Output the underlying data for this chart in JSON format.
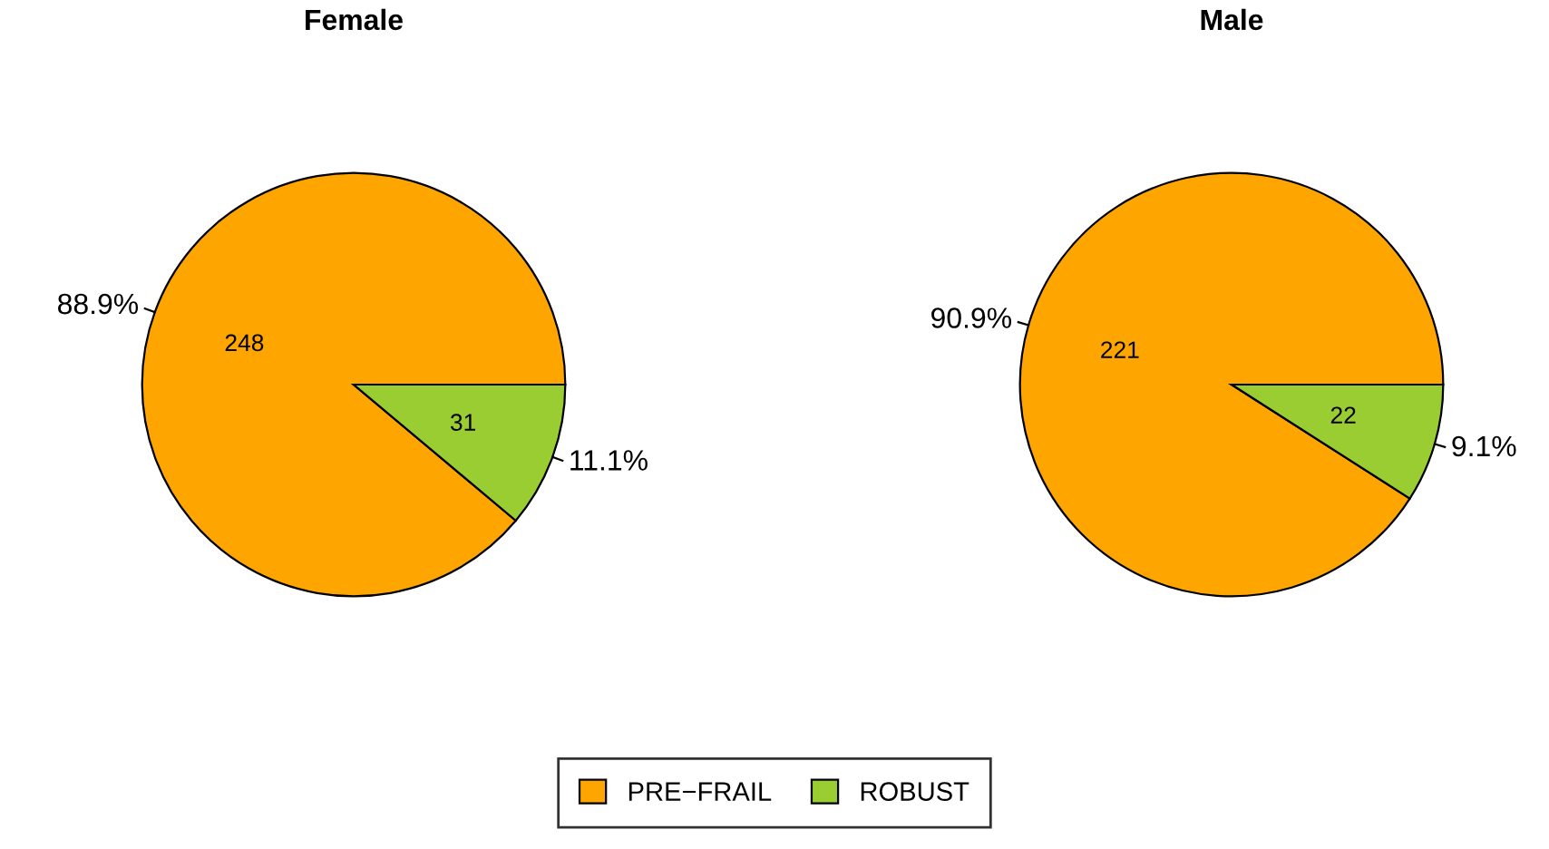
{
  "chart_data": [
    {
      "type": "pie",
      "title": "Female",
      "categories": [
        "PRE−FRAIL",
        "ROBUST"
      ],
      "values": [
        248,
        31
      ],
      "colors": [
        "#ffa500",
        "#9acd32"
      ],
      "data_labels": true,
      "annotations": [
        "88.9%",
        "11.1%"
      ],
      "legend": "bottom"
    },
    {
      "type": "pie",
      "title": "Male",
      "categories": [
        null,
        null
      ],
      "values": [
        221,
        22
      ],
      "colors": [
        "#ffa500",
        "#9acd32"
      ],
      "data_labels": true,
      "annotations": [
        "90.9%",
        "9.1%"
      ]
    }
  ]
}
